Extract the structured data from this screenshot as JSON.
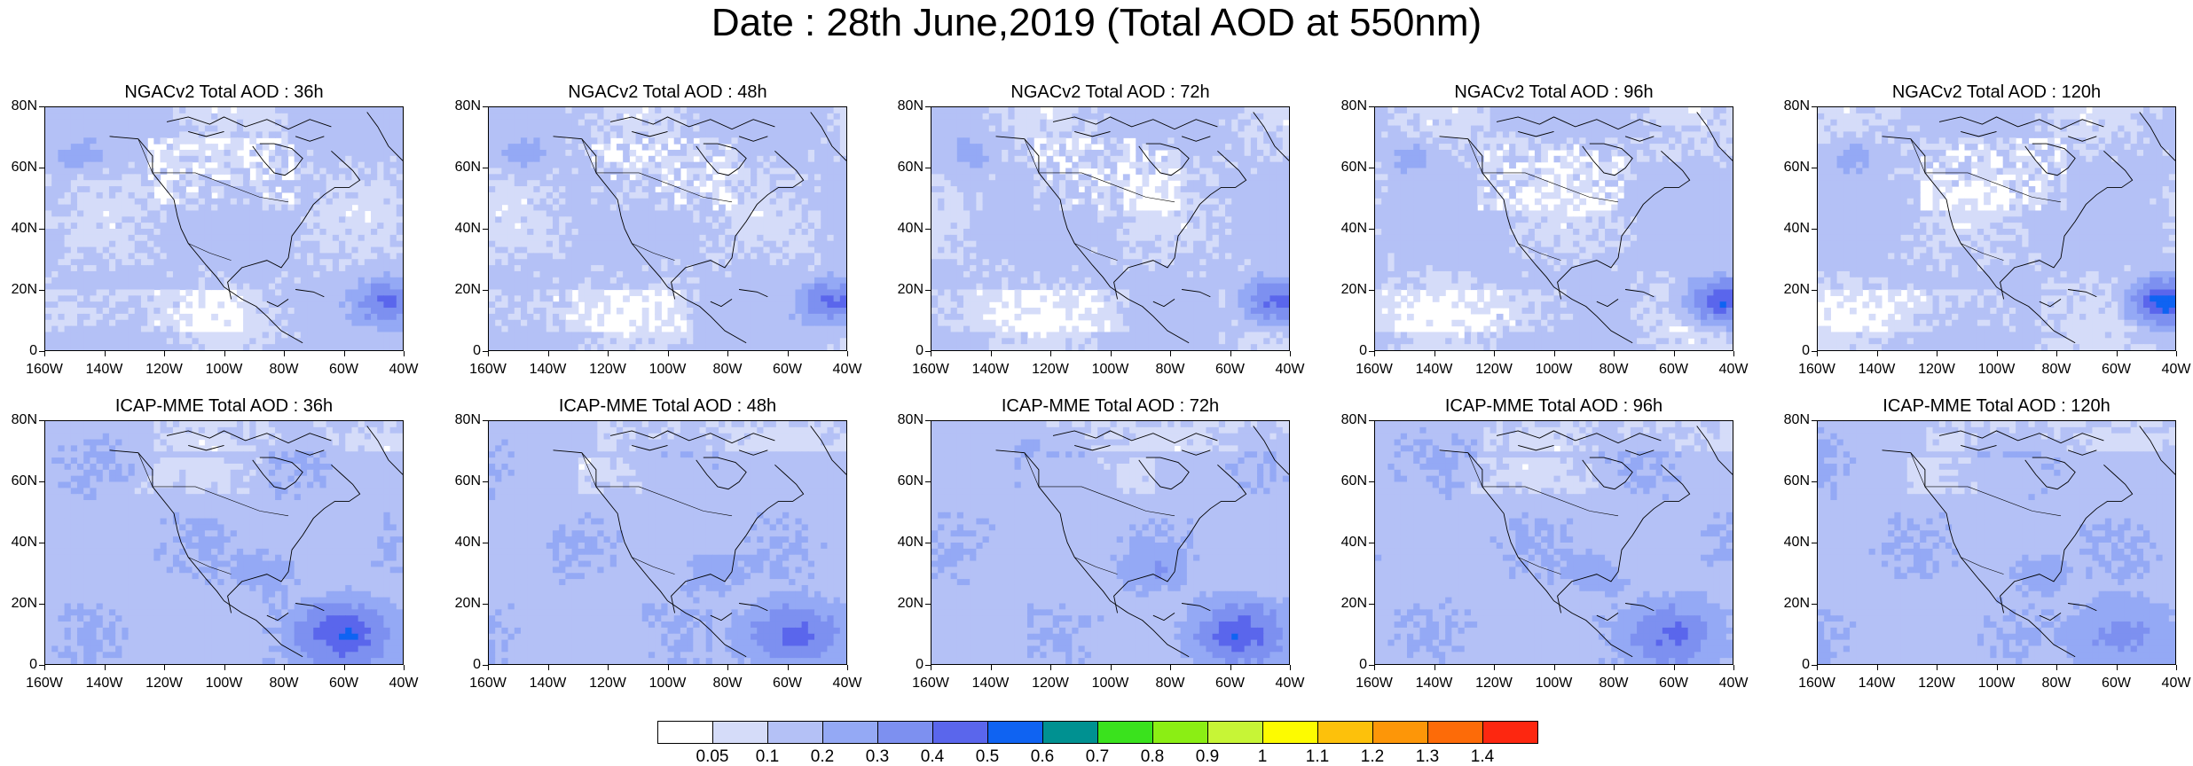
{
  "title": "Date : 28th June,2019 (Total AOD at 550nm)",
  "rows": [
    {
      "model": "NGACv2",
      "panels": [
        {
          "title": "NGACv2 Total AOD : 36h",
          "lead_hours": 36
        },
        {
          "title": "NGACv2 Total AOD : 48h",
          "lead_hours": 48
        },
        {
          "title": "NGACv2 Total AOD : 72h",
          "lead_hours": 72
        },
        {
          "title": "NGACv2 Total AOD : 96h",
          "lead_hours": 96
        },
        {
          "title": "NGACv2 Total AOD : 120h",
          "lead_hours": 120
        }
      ]
    },
    {
      "model": "ICAP-MME",
      "panels": [
        {
          "title": "ICAP-MME Total AOD : 36h",
          "lead_hours": 36
        },
        {
          "title": "ICAP-MME Total AOD : 48h",
          "lead_hours": 48
        },
        {
          "title": "ICAP-MME Total AOD : 72h",
          "lead_hours": 72
        },
        {
          "title": "ICAP-MME Total AOD : 96h",
          "lead_hours": 96
        },
        {
          "title": "ICAP-MME Total AOD : 120h",
          "lead_hours": 120
        }
      ]
    }
  ],
  "lat_ticks": [
    "0",
    "20N",
    "40N",
    "60N",
    "80N"
  ],
  "lon_ticks": [
    "160W",
    "140W",
    "120W",
    "100W",
    "80W",
    "60W",
    "40W"
  ],
  "map_extent": {
    "lon_min": -160,
    "lon_max": -40,
    "lat_min": 0,
    "lat_max": 80
  },
  "colorbar": {
    "labels": [
      "0.05",
      "0.1",
      "0.2",
      "0.3",
      "0.4",
      "0.5",
      "0.6",
      "0.7",
      "0.8",
      "0.9",
      "1",
      "1.1",
      "1.2",
      "1.3",
      "1.4"
    ],
    "colors": [
      "#ffffff",
      "#d5dcf9",
      "#b4c1f6",
      "#94a9f5",
      "#7d90f0",
      "#5a66ec",
      "#0f63f2",
      "#009191",
      "#3ae21d",
      "#8bee14",
      "#c7f536",
      "#fdfb00",
      "#fdc10b",
      "#fd9608",
      "#fd6b08",
      "#fd2710"
    ]
  }
}
